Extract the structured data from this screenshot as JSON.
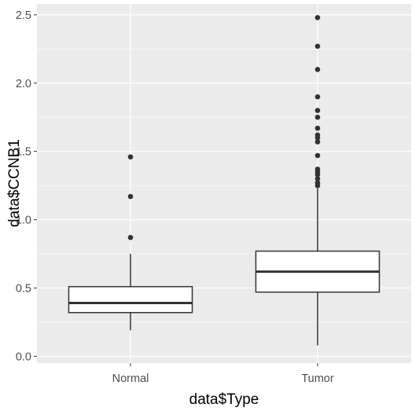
{
  "chart_data": {
    "type": "box",
    "xlabel": "data$Type",
    "ylabel": "data$CCNB1",
    "categories": [
      "Normal",
      "Tumor"
    ],
    "ylim": [
      -0.05,
      2.58
    ],
    "y_ticks": [
      0.0,
      0.5,
      1.0,
      1.5,
      2.0,
      2.5
    ],
    "y_tick_labels": [
      "0.0",
      "0.5",
      "1.0",
      "1.5",
      "2.0",
      "2.5"
    ],
    "grid": true,
    "background": "#ebebeb",
    "box_fill": "#ffffff",
    "box_stroke": "#333333",
    "boxes": [
      {
        "category": "Normal",
        "whisker_low": 0.19,
        "q1": 0.32,
        "median": 0.39,
        "q3": 0.51,
        "whisker_high": 0.75,
        "outliers": [
          0.87,
          1.17,
          1.46
        ]
      },
      {
        "category": "Tumor",
        "whisker_low": 0.08,
        "q1": 0.47,
        "median": 0.62,
        "q3": 0.77,
        "whisker_high": 1.23,
        "outliers": [
          1.25,
          1.27,
          1.3,
          1.33,
          1.35,
          1.37,
          1.47,
          1.57,
          1.6,
          1.62,
          1.67,
          1.75,
          1.8,
          1.9,
          2.1,
          2.27,
          2.48
        ]
      }
    ]
  }
}
